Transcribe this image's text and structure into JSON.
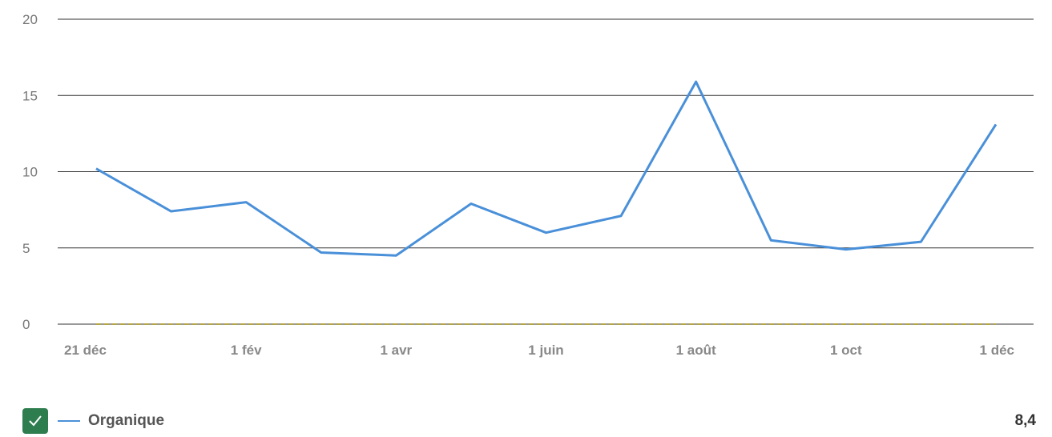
{
  "chart_data": {
    "type": "line",
    "title": "",
    "xlabel": "",
    "ylabel": "",
    "ylim": [
      0,
      20
    ],
    "y_ticks": [
      0,
      5,
      10,
      15,
      20
    ],
    "x_tick_labels": [
      "21 déc",
      "1 fév",
      "1 avr",
      "1 juin",
      "1 août",
      "1 oct",
      "1 déc"
    ],
    "x": [
      "21 déc",
      "",
      "1 fév",
      "",
      "1 avr",
      "",
      "1 juin",
      "",
      "1 août",
      "",
      "1 oct",
      "",
      "1 déc"
    ],
    "series": [
      {
        "name": "Organique",
        "color": "#4a90d9",
        "values": [
          10.2,
          7.4,
          8.0,
          4.7,
          4.5,
          7.9,
          6.0,
          7.1,
          15.9,
          5.5,
          4.9,
          5.4,
          13.1
        ]
      },
      {
        "name": "",
        "color": "#b5a642",
        "dashed": true,
        "values": [
          0,
          0,
          0,
          0,
          0,
          0,
          0,
          0,
          0,
          0,
          0,
          0,
          0
        ]
      }
    ],
    "grid": true
  },
  "legend": {
    "label": "Organique",
    "value": "8,4",
    "checked": true,
    "check_color": "#2e7d4f"
  }
}
